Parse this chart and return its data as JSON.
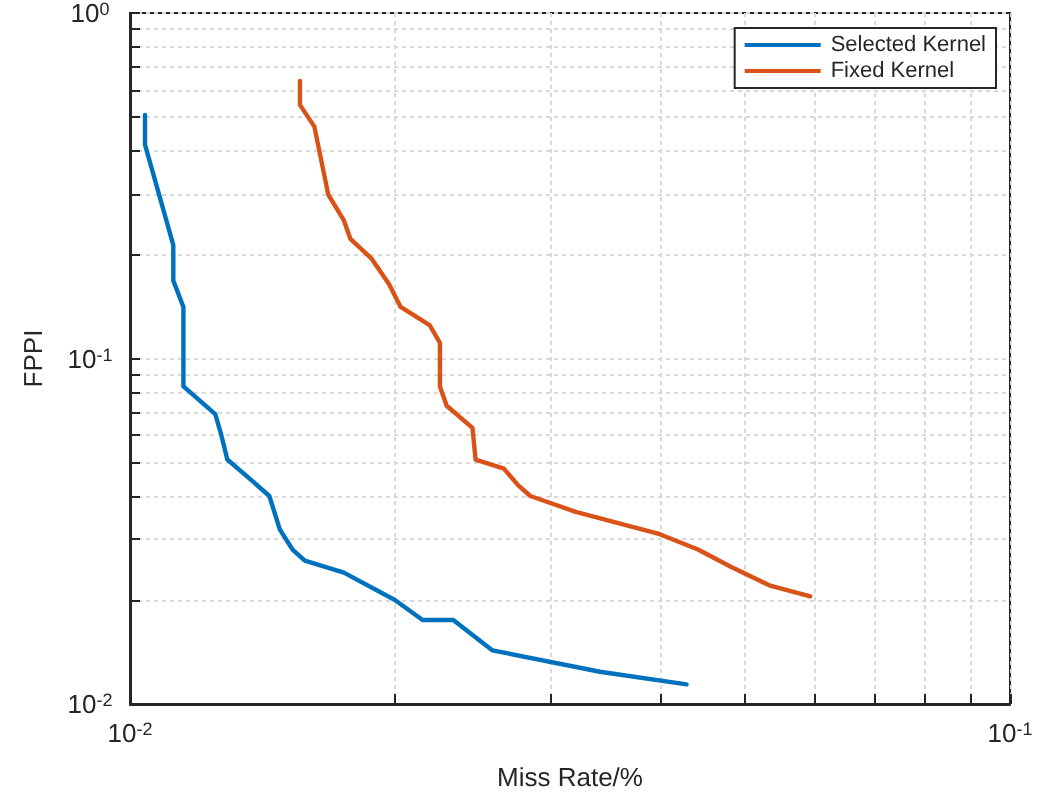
{
  "chart_data": {
    "type": "line",
    "xlabel": "Miss Rate/%",
    "ylabel": "FPPI",
    "log": "xy",
    "grid": true,
    "legend": "top right",
    "line_style": "solid",
    "marker": "none",
    "xlim": [
      0.01,
      0.1
    ],
    "xticks": [
      {
        "value": 0.01,
        "label": "10$^{-2}$"
      },
      {
        "value": 0.02,
        "label": null
      },
      {
        "value": 0.03,
        "label": null
      },
      {
        "value": 0.04,
        "label": null
      },
      {
        "value": 0.05,
        "label": null
      },
      {
        "value": 0.06,
        "label": null
      },
      {
        "value": 0.07,
        "label": null
      },
      {
        "value": 0.08,
        "label": null
      },
      {
        "value": 0.09,
        "label": null
      },
      {
        "value": 0.1,
        "label": "10$^{-1}$"
      }
    ],
    "ylim": [
      0.01,
      1
    ],
    "yticks": [
      {
        "value": 0.01,
        "label": "10$^{-2}$"
      },
      {
        "value": 0.02,
        "label": null
      },
      {
        "value": 0.03,
        "label": null
      },
      {
        "value": 0.04,
        "label": null
      },
      {
        "value": 0.05,
        "label": null
      },
      {
        "value": 0.06,
        "label": null
      },
      {
        "value": 0.07,
        "label": null
      },
      {
        "value": 0.08,
        "label": null
      },
      {
        "value": 0.09,
        "label": null
      },
      {
        "value": 0.1,
        "label": "10$^{-1}$"
      },
      {
        "value": 0.2,
        "label": null
      },
      {
        "value": 0.3,
        "label": null
      },
      {
        "value": 0.4,
        "label": null
      },
      {
        "value": 0.5,
        "label": null
      },
      {
        "value": 0.6,
        "label": null
      },
      {
        "value": 0.7,
        "label": null
      },
      {
        "value": 0.8,
        "label": null
      },
      {
        "value": 0.9,
        "label": null
      },
      {
        "value": 1,
        "label": "10$^{0}$"
      }
    ],
    "series": [
      {
        "name": "Selected Kernel",
        "color": "#0072bd",
        "x": [
          0.0104,
          0.0104,
          0.0112,
          0.0112,
          0.0115,
          0.0115,
          0.0125,
          0.0127,
          0.0129,
          0.0138,
          0.0144,
          0.0148,
          0.0153,
          0.0158,
          0.0175,
          0.02,
          0.0215,
          0.0233,
          0.0258,
          0.0342,
          0.0429
        ],
        "values": [
          0.507,
          0.416,
          0.213,
          0.168,
          0.141,
          0.083,
          0.069,
          0.06,
          0.051,
          0.044,
          0.04,
          0.032,
          0.028,
          0.026,
          0.024,
          0.02,
          0.0175,
          0.0175,
          0.0143,
          0.0124,
          0.0114
        ]
      },
      {
        "name": "Fixed Kernel",
        "color": "#d95319",
        "x": [
          0.0156,
          0.0156,
          0.0162,
          0.0168,
          0.0175,
          0.0178,
          0.0188,
          0.0197,
          0.0203,
          0.0219,
          0.0225,
          0.0225,
          0.0229,
          0.0245,
          0.0247,
          0.0266,
          0.0276,
          0.0285,
          0.0321,
          0.04,
          0.0442,
          0.0481,
          0.0534,
          0.0593
        ],
        "values": [
          0.636,
          0.542,
          0.469,
          0.298,
          0.251,
          0.222,
          0.195,
          0.164,
          0.141,
          0.125,
          0.111,
          0.083,
          0.073,
          0.063,
          0.051,
          0.048,
          0.043,
          0.04,
          0.036,
          0.031,
          0.028,
          0.025,
          0.022,
          0.0205
        ]
      }
    ]
  }
}
